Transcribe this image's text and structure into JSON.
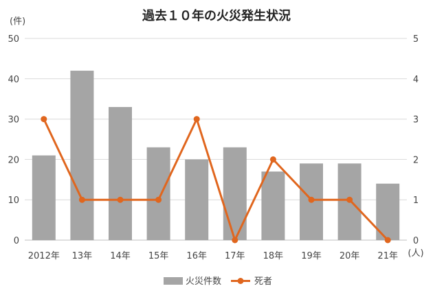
{
  "chart_data": {
    "type": "bar",
    "title": "過去１０年の火災発生状況",
    "left_unit": "(件)",
    "right_unit": "(人)",
    "categories": [
      "2012年",
      "13年",
      "14年",
      "15年",
      "16年",
      "17年",
      "18年",
      "19年",
      "20年",
      "21年"
    ],
    "series": [
      {
        "name": "火災件数",
        "type": "bar",
        "axis": "left",
        "color": "#a5a5a5",
        "values": [
          21,
          42,
          33,
          23,
          20,
          23,
          17,
          19,
          19,
          14
        ]
      },
      {
        "name": "死者",
        "type": "line",
        "axis": "right",
        "color": "#e0661e",
        "values": [
          3,
          1,
          1,
          1,
          3,
          0,
          2,
          1,
          1,
          0
        ]
      }
    ],
    "y_left": {
      "min": 0,
      "max": 50,
      "ticks": [
        0,
        10,
        20,
        30,
        40,
        50
      ]
    },
    "y_right": {
      "min": 0,
      "max": 5,
      "ticks": [
        0,
        1,
        2,
        3,
        4,
        5
      ]
    },
    "grid": true,
    "legend_position": "bottom"
  }
}
